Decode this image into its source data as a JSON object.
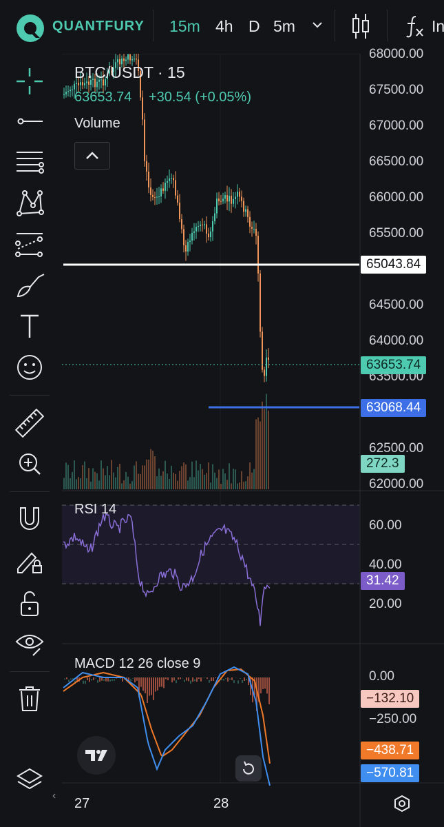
{
  "app": {
    "brand": "QUANTFURY"
  },
  "toolbar": {
    "timeframes": [
      "15m",
      "4h",
      "D",
      "5m"
    ],
    "active_timeframe": "15m",
    "indicator_label": "In"
  },
  "chart": {
    "symbol_title": "BTC/USDT · 15",
    "last_price": "63653.74",
    "change": "+30.54 (+0.05%)",
    "volume_label": "Volume",
    "rsi_label": "RSI 14",
    "macd_label": "MACD 12 26 close 9",
    "price_axis": [
      "68000.00",
      "67500.00",
      "67000.00",
      "66500.00",
      "66000.00",
      "65500.00",
      "64500.00",
      "64000.00",
      "63500.00",
      "62500.00",
      "62000.00"
    ],
    "rsi_axis": [
      "60.00",
      "40.00",
      "20.00"
    ],
    "macd_axis": [
      "0.00",
      "−250.00"
    ],
    "time_axis": [
      "27",
      "28"
    ],
    "tags": {
      "white_line": "65043.84",
      "last": "63653.74",
      "blue_line": "63068.44",
      "volume": "272.3",
      "rsi": "31.42",
      "macd_hist": "−132.10",
      "macd_signal": "−438.71",
      "macd_line": "−570.81"
    },
    "colors": {
      "up": "#4ecab0",
      "down": "#f0955a",
      "white_line": "#ffffff",
      "blue_line": "#3c6fe6",
      "rsi": "#8b6fd8",
      "macd": "#3f8ef0",
      "signal": "#f07a2a"
    }
  }
}
